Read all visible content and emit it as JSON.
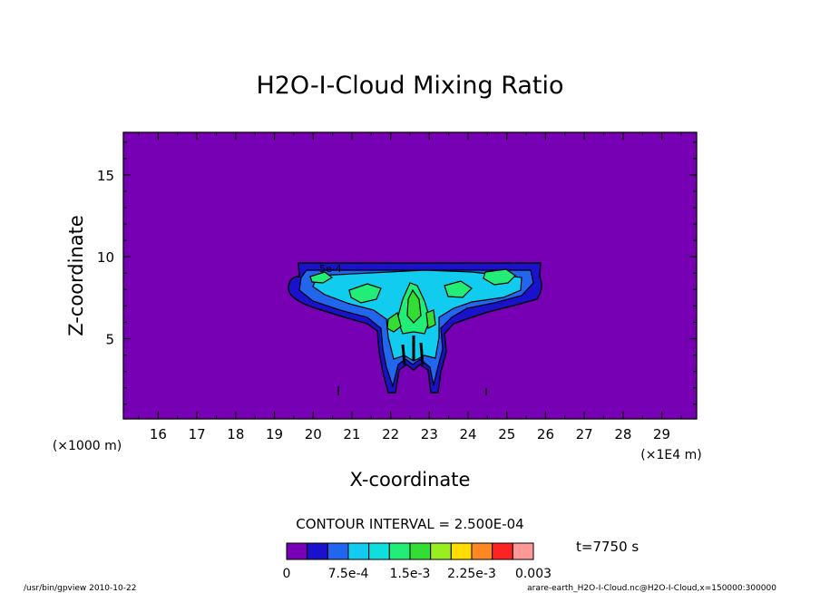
{
  "chart_data": {
    "type": "contour",
    "title": "H2O-I-Cloud Mixing Ratio",
    "xlabel": "X-coordinate",
    "ylabel": "Z-coordinate",
    "x_units_label": "(×1E4 m)",
    "y_units_label": "(×1000 m)",
    "xlim": [
      15.1,
      29.9
    ],
    "ylim": [
      0.1,
      17.6
    ],
    "x_ticks": [
      16,
      17,
      18,
      19,
      20,
      21,
      22,
      23,
      24,
      25,
      26,
      27,
      28,
      29
    ],
    "y_ticks": [
      5,
      10,
      15
    ],
    "contour_interval": "CONTOUR INTERVAL = 2.500E-04",
    "time_label": "t=7750 s",
    "contour_label": "5e-4",
    "colorbar": {
      "colors": [
        "#7700b5",
        "#1a11cc",
        "#2266ee",
        "#11ccee",
        "#11dddd",
        "#22ee77",
        "#33dd33",
        "#99ee22",
        "#ffdd00",
        "#ff8822",
        "#ff2222",
        "#ff9999"
      ],
      "labels": [
        "0",
        "7.5e-4",
        "1.5e-3",
        "2.25e-3",
        "0.003"
      ],
      "label_values": [
        0,
        0.00075,
        0.0015,
        0.00225,
        0.003
      ]
    },
    "cloud_levels": [
      {
        "level": 0.00025,
        "color": "#1a11cc"
      },
      {
        "level": 0.0005,
        "color": "#2266ee"
      },
      {
        "level": 0.00075,
        "color": "#11ccee"
      },
      {
        "level": 0.001,
        "color": "#22ee77"
      },
      {
        "level": 0.00125,
        "color": "#33dd33"
      }
    ]
  },
  "footer": {
    "left": "/usr/bin/gpview   2010-10-22",
    "right": "arare-earth_H2O-I-Cloud.nc@H2O-I-Cloud,x=150000:300000"
  }
}
